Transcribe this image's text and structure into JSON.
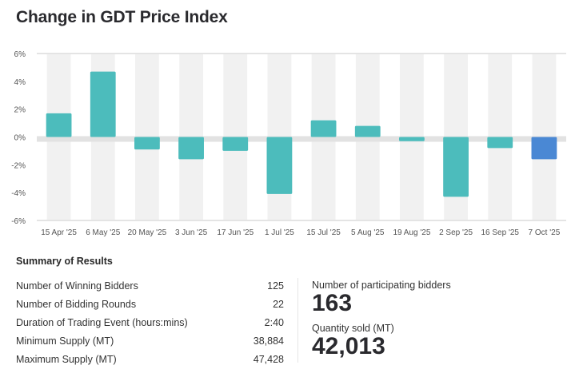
{
  "chart_data": {
    "type": "bar",
    "title": "Change in GDT Price Index",
    "xlabel": "",
    "ylabel": "",
    "categories": [
      "15 Apr '25",
      "6 May '25",
      "20 May '25",
      "3 Jun '25",
      "17 Jun '25",
      "1 Jul '25",
      "15 Jul '25",
      "5 Aug '25",
      "19 Aug '25",
      "2 Sep '25",
      "16 Sep '25",
      "7 Oct '25"
    ],
    "values": [
      1.7,
      4.7,
      -0.9,
      -1.6,
      -1.0,
      -4.1,
      1.2,
      0.8,
      -0.3,
      -4.3,
      -0.8,
      -1.6
    ],
    "ylim": [
      -6,
      6
    ],
    "yticks": [
      6,
      4,
      2,
      0,
      -2,
      -4,
      -6
    ],
    "ytick_labels": [
      "6%",
      "4%",
      "2%",
      "0%",
      "-2%",
      "-4%",
      "-6%"
    ],
    "grid": false,
    "colors": {
      "default": "#4cbcbc",
      "highlight": "#4a88d4",
      "band": "#f1f1f1",
      "zero_line": "#e2e2e2"
    },
    "highlight_index": 11
  },
  "summary": {
    "title": "Summary of Results",
    "rows": [
      {
        "label": "Number of Winning Bidders",
        "value": "125"
      },
      {
        "label": "Number of Bidding Rounds",
        "value": "22"
      },
      {
        "label": "Duration of Trading Event (hours:mins)",
        "value": "2:40"
      },
      {
        "label": "Minimum Supply (MT)",
        "value": "38,884"
      },
      {
        "label": "Maximum Supply (MT)",
        "value": "47,428"
      }
    ]
  },
  "kpis": {
    "participating_label": "Number of participating bidders",
    "participating_value": "163",
    "quantity_label": "Quantity sold (MT)",
    "quantity_value": "42,013"
  }
}
